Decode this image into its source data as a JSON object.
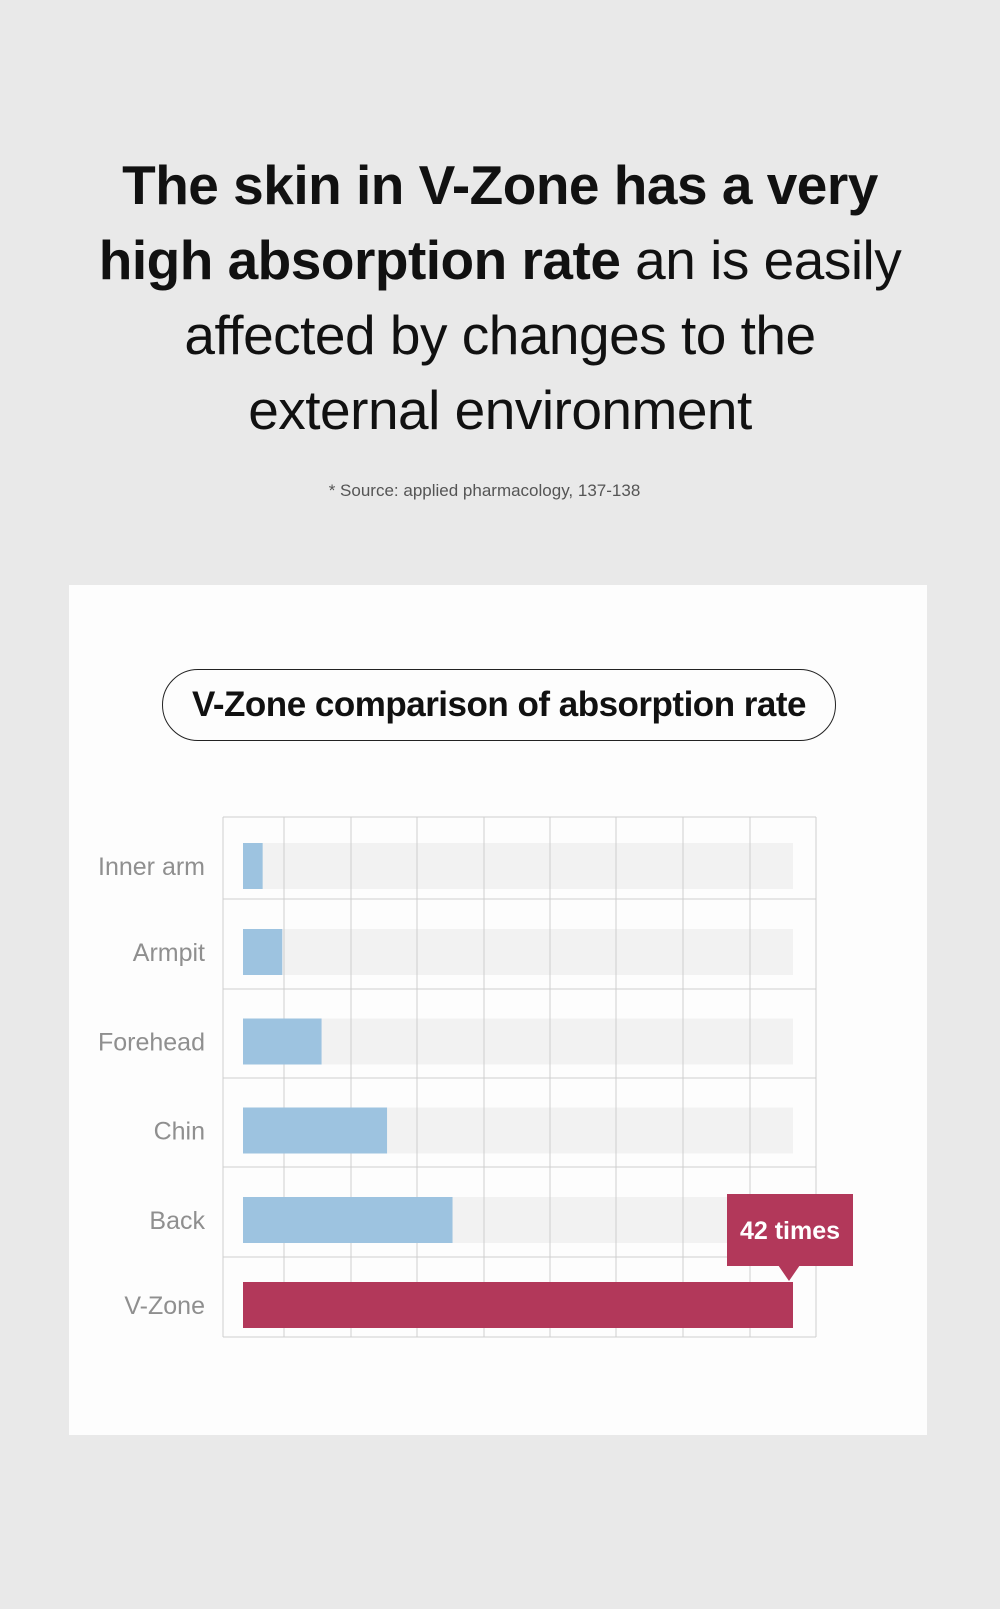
{
  "headline": {
    "bold_1": "The skin in V-Zone has a very",
    "bold_2": "high absorption rate",
    "light_2": " an is easily",
    "light_3": "affected by changes to the",
    "light_4": "external environment"
  },
  "source": "* Source: applied pharmacology, 137-138",
  "chart_data": {
    "type": "bar",
    "orientation": "horizontal",
    "title": "V-Zone comparison of absorption rate",
    "categories": [
      "Inner arm",
      "Armpit",
      "Forehead",
      "Chin",
      "Back",
      "V-Zone"
    ],
    "values": [
      1.5,
      3,
      6,
      11,
      16,
      42
    ],
    "xlim": [
      0,
      42
    ],
    "grid": true,
    "annotation": {
      "category": "V-Zone",
      "text": "42 times"
    },
    "colors": {
      "bar": "#9dc3e0",
      "highlight": "#b2385a",
      "track": "#f2f2f2",
      "grid": "#cfcfcf",
      "label": "#8f8f8f"
    }
  }
}
